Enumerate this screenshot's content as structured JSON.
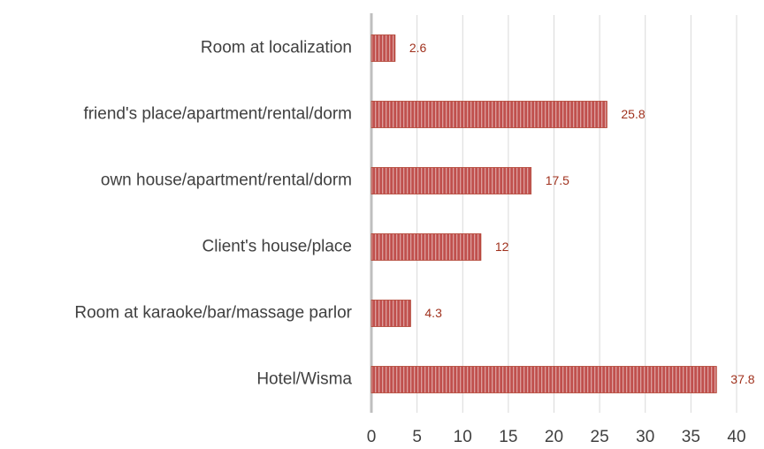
{
  "chart_data": {
    "type": "bar",
    "orientation": "horizontal",
    "categories": [
      "Room at localization",
      "friend's place/apartment/rental/dorm",
      "own house/apartment/rental/dorm",
      "Client's house/place",
      "Room at karaoke/bar/massage parlor",
      "Hotel/Wisma"
    ],
    "values": [
      2.6,
      25.8,
      17.5,
      12,
      4.3,
      37.8
    ],
    "color": "#c0504d",
    "xlim": [
      0,
      40
    ],
    "xticks": [
      0,
      5,
      10,
      15,
      20,
      25,
      30,
      35,
      40
    ],
    "grid": true
  }
}
